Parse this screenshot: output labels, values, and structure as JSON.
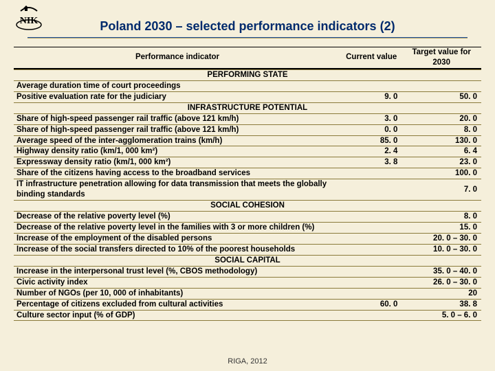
{
  "title": "Poland 2030 – selected performance indicators (2)",
  "footer": "RIGA, 2012",
  "logo_text": "NIK",
  "columns": {
    "indicator": "Performance indicator",
    "current": "Current value",
    "target": "Target value for 2030"
  },
  "col_widths": {
    "indicator_pct": 70,
    "current_pct": 13,
    "target_pct": 17
  },
  "sections": [
    {
      "name": "PERFORMING STATE",
      "rows": [
        {
          "indicator": "Average duration time of court proceedings",
          "current": "",
          "target": ""
        },
        {
          "indicator": "Positive evaluation rate for the judiciary",
          "current": "9. 0",
          "target": "50. 0"
        }
      ]
    },
    {
      "name": "INFRASTRUCTURE POTENTIAL",
      "rows": [
        {
          "indicator": "Share of high-speed passenger rail traffic (above 121 km/h)",
          "current": "3. 0",
          "target": "20. 0"
        },
        {
          "indicator": "Share of high-speed passenger rail traffic (above 121 km/h)",
          "current": "0. 0",
          "target": "8. 0"
        },
        {
          "indicator": "Average speed of the inter-agglomeration trains (km/h)",
          "current": "85. 0",
          "target": "130. 0"
        },
        {
          "indicator": "Highway density ratio (km/1, 000 km²)",
          "current": "2. 4",
          "target": "6. 4"
        },
        {
          "indicator": "Expressway density ratio (km/1, 000 km²)",
          "current": "3. 8",
          "target": "23. 0"
        },
        {
          "indicator": "Share of the citizens having access to the broadband services",
          "current": "",
          "target": "100. 0"
        },
        {
          "indicator": "IT infrastructure penetration allowing for data transmission that meets the globally binding standards",
          "current": "",
          "target": "7. 0"
        }
      ]
    },
    {
      "name": "SOCIAL COHESION",
      "rows": [
        {
          "indicator": "Decrease of the relative poverty level (%)",
          "current": "",
          "target": "8. 0"
        },
        {
          "indicator": "Decrease of the relative poverty level in the families with 3 or more children  (%)",
          "current": "",
          "target": "15. 0"
        },
        {
          "indicator": "Increase of the employment of the disabled persons",
          "current": "",
          "target": "20. 0 – 30. 0"
        },
        {
          "indicator": "Increase of the social transfers directed to 10% of the poorest households",
          "current": "",
          "target": "10. 0 – 30. 0"
        }
      ]
    },
    {
      "name": "SOCIAL CAPITAL",
      "rows": [
        {
          "indicator": "Increase in the interpersonal trust level (%, CBOS methodology)",
          "current": "",
          "target": "35. 0 – 40. 0"
        },
        {
          "indicator": "Civic activity index",
          "current": "",
          "target": "26. 0 – 30. 0"
        },
        {
          "indicator": "Number of NGOs (per 10, 000 of inhabitants)",
          "current": "",
          "target": "20"
        },
        {
          "indicator": "Percentage of citizens excluded from cultural activities",
          "current": "60. 0",
          "target": "38. 8"
        },
        {
          "indicator": "Culture sector input (% of GDP)",
          "current": "",
          "target": "5. 0 – 6. 0"
        }
      ]
    }
  ],
  "colors": {
    "background": "#f5efdb",
    "title": "#002a6c",
    "rule": "#8a7a3a",
    "rule_blue": "#1a4fa0",
    "text": "#000000"
  }
}
